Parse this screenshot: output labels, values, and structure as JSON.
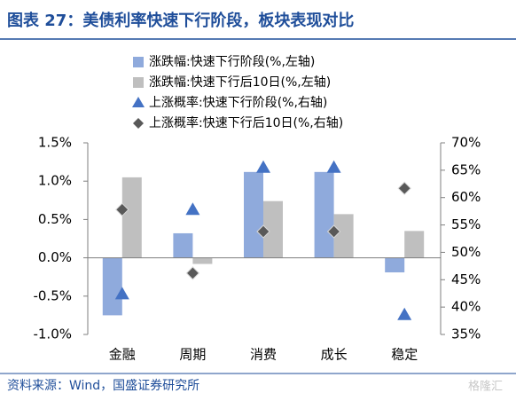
{
  "chart_data": {
    "type": "bar",
    "title": "图表 27：美债利率快速下行阶段，板块表现对比",
    "source": "资料来源：Wind，国盛证券研究所",
    "watermark": "格隆汇",
    "categories": [
      "金融",
      "周期",
      "消费",
      "成长",
      "稳定"
    ],
    "series": [
      {
        "name": "涨跌幅:快速下行阶段(%,左轴)",
        "type": "bar",
        "color": "#8faadc",
        "values": [
          -0.75,
          0.32,
          1.12,
          1.12,
          -0.19
        ]
      },
      {
        "name": "涨跌幅:快速下行后10日(%,左轴)",
        "type": "bar",
        "color": "#bfbfbf",
        "values": [
          1.05,
          -0.08,
          0.74,
          0.57,
          0.35
        ]
      },
      {
        "name": "上涨概率:快速下行阶段(%,右轴)",
        "type": "scatter",
        "marker": "triangle",
        "axis": "y2",
        "color": "#4472c4",
        "values": [
          42.4,
          57.8,
          65.5,
          65.5,
          38.6
        ]
      },
      {
        "name": "上涨概率:快速下行后10日(%,右轴)",
        "type": "scatter",
        "marker": "diamond",
        "axis": "y2",
        "color": "#595959",
        "values": [
          57.8,
          46.2,
          53.8,
          53.8,
          61.7
        ]
      }
    ],
    "ylim": [
      -1.0,
      1.5
    ],
    "yticks": [
      {
        "value": -1.0,
        "label": "-1.0%"
      },
      {
        "value": -0.5,
        "label": "-0.5%"
      },
      {
        "value": 0,
        "label": "0.0%"
      },
      {
        "value": 0.5,
        "label": "0.5%"
      },
      {
        "value": 1.0,
        "label": "1.0%"
      },
      {
        "value": 1.5,
        "label": "1.5%"
      }
    ],
    "y2lim": [
      35,
      70
    ],
    "y2ticks": [
      {
        "value": 35,
        "label": "35%"
      },
      {
        "value": 40,
        "label": "40%"
      },
      {
        "value": 45,
        "label": "45%"
      },
      {
        "value": 50,
        "label": "50%"
      },
      {
        "value": 55,
        "label": "55%"
      },
      {
        "value": 60,
        "label": "60%"
      },
      {
        "value": 65,
        "label": "65%"
      },
      {
        "value": 70,
        "label": "70%"
      }
    ]
  }
}
